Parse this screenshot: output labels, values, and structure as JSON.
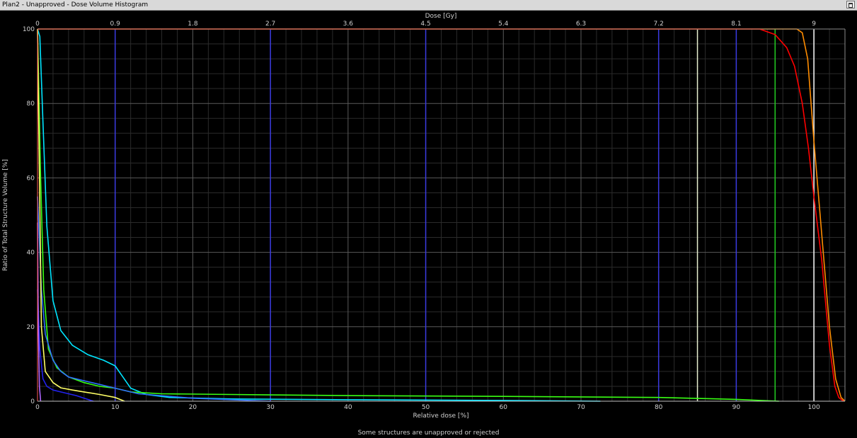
{
  "window": {
    "title": "Plan2 - Unapproved - Dose Volume Histogram",
    "max_button_icon": "maximize-icon"
  },
  "status_text": "Some structures are unapproved or rejected",
  "colors": {
    "background": "#000000",
    "grid_major": "#5a5a5a",
    "grid_minor": "#2b2b2b",
    "axis_text": "#d0d0d0"
  },
  "chart_data": {
    "type": "line",
    "title": "",
    "xlabel": "Relative dose [%]",
    "x2label": "Dose [Gy]",
    "ylabel": "Ratio of Total Structure Volume [%]",
    "xlim": [
      0,
      104
    ],
    "ylim": [
      0,
      100
    ],
    "x_ticks": [
      "0",
      "10",
      "20",
      "30",
      "40",
      "50",
      "60",
      "70",
      "80",
      "90",
      "100"
    ],
    "x2_ticks": [
      "0",
      "0.9",
      "1.8",
      "2.7",
      "3.6",
      "4.5",
      "5.4",
      "6.3",
      "7.2",
      "8.1",
      "9"
    ],
    "y_ticks": [
      "0",
      "20",
      "40",
      "60",
      "80",
      "100"
    ],
    "grid": true,
    "reference_lines": [
      {
        "x": 10,
        "color": "#3a3ae0"
      },
      {
        "x": 30,
        "color": "#3a3ae0"
      },
      {
        "x": 50,
        "color": "#3a3ae0"
      },
      {
        "x": 80,
        "color": "#3a3ae0"
      },
      {
        "x": 90,
        "color": "#3a3ae0"
      },
      {
        "x": 85,
        "color": "#e8f0d0"
      },
      {
        "x": 95,
        "color": "#22cc22"
      },
      {
        "x": 100,
        "color": "#ffffff"
      }
    ],
    "series": [
      {
        "color": "#ff8c00",
        "x": [
          0,
          96,
          97.8,
          98.5,
          99.2,
          100,
          101,
          102,
          102.8,
          103.5,
          104
        ],
        "y": [
          100,
          100,
          100,
          99,
          92,
          70,
          45,
          20,
          6,
          1,
          0
        ]
      },
      {
        "color": "#ff0000",
        "x": [
          0,
          93,
          95,
          96.5,
          97.5,
          98.5,
          99.3,
          100,
          101,
          102,
          102.7,
          103.2,
          103.8
        ],
        "y": [
          100,
          100,
          98.5,
          95,
          90,
          80,
          68,
          55,
          38,
          15,
          4,
          1,
          0
        ]
      },
      {
        "color": "#00e5ff",
        "x": [
          0,
          0.3,
          0.7,
          1.2,
          2,
          3,
          4.5,
          6.5,
          8.5,
          10,
          11,
          12,
          14,
          17,
          25,
          40,
          60,
          72.5
        ],
        "y": [
          100,
          98,
          75,
          47,
          27,
          19,
          15,
          12.5,
          11,
          9.5,
          6.5,
          3.5,
          1.8,
          1,
          0.6,
          0.4,
          0.2,
          0
        ]
      },
      {
        "color": "#39ff14",
        "x": [
          0,
          0.4,
          0.8,
          1.4,
          2.5,
          4,
          6,
          8,
          10,
          12,
          16,
          25,
          40,
          60,
          80,
          90,
          95.5
        ],
        "y": [
          100,
          60,
          30,
          14,
          9,
          6.5,
          5,
          4,
          3.5,
          2.5,
          2,
          1.8,
          1.5,
          1.3,
          1,
          0.5,
          0
        ]
      },
      {
        "color": "#2f6fff",
        "x": [
          0,
          0.5,
          1,
          2,
          3,
          4,
          6,
          8,
          10,
          13,
          20,
          30
        ],
        "y": [
          55,
          30,
          18,
          11,
          8,
          6.5,
          5.5,
          4.5,
          3.5,
          2,
          0.8,
          0
        ]
      },
      {
        "color": "#ffff66",
        "x": [
          0,
          0.5,
          1,
          2,
          3,
          4.5,
          6,
          8,
          10,
          11.2
        ],
        "y": [
          100,
          20,
          8,
          5,
          3.6,
          3,
          2.5,
          1.8,
          1,
          0
        ]
      },
      {
        "color": "#2222ee",
        "x": [
          0,
          0.3,
          0.7,
          1.2,
          2,
          3,
          4,
          5,
          6,
          7.2
        ],
        "y": [
          30,
          14,
          6,
          4,
          3,
          2.5,
          2,
          1.5,
          0.8,
          0
        ]
      },
      {
        "color": "#b066ff",
        "x": [
          0,
          0.1,
          0.25,
          0.4
        ],
        "y": [
          48,
          20,
          4,
          0
        ]
      }
    ]
  }
}
